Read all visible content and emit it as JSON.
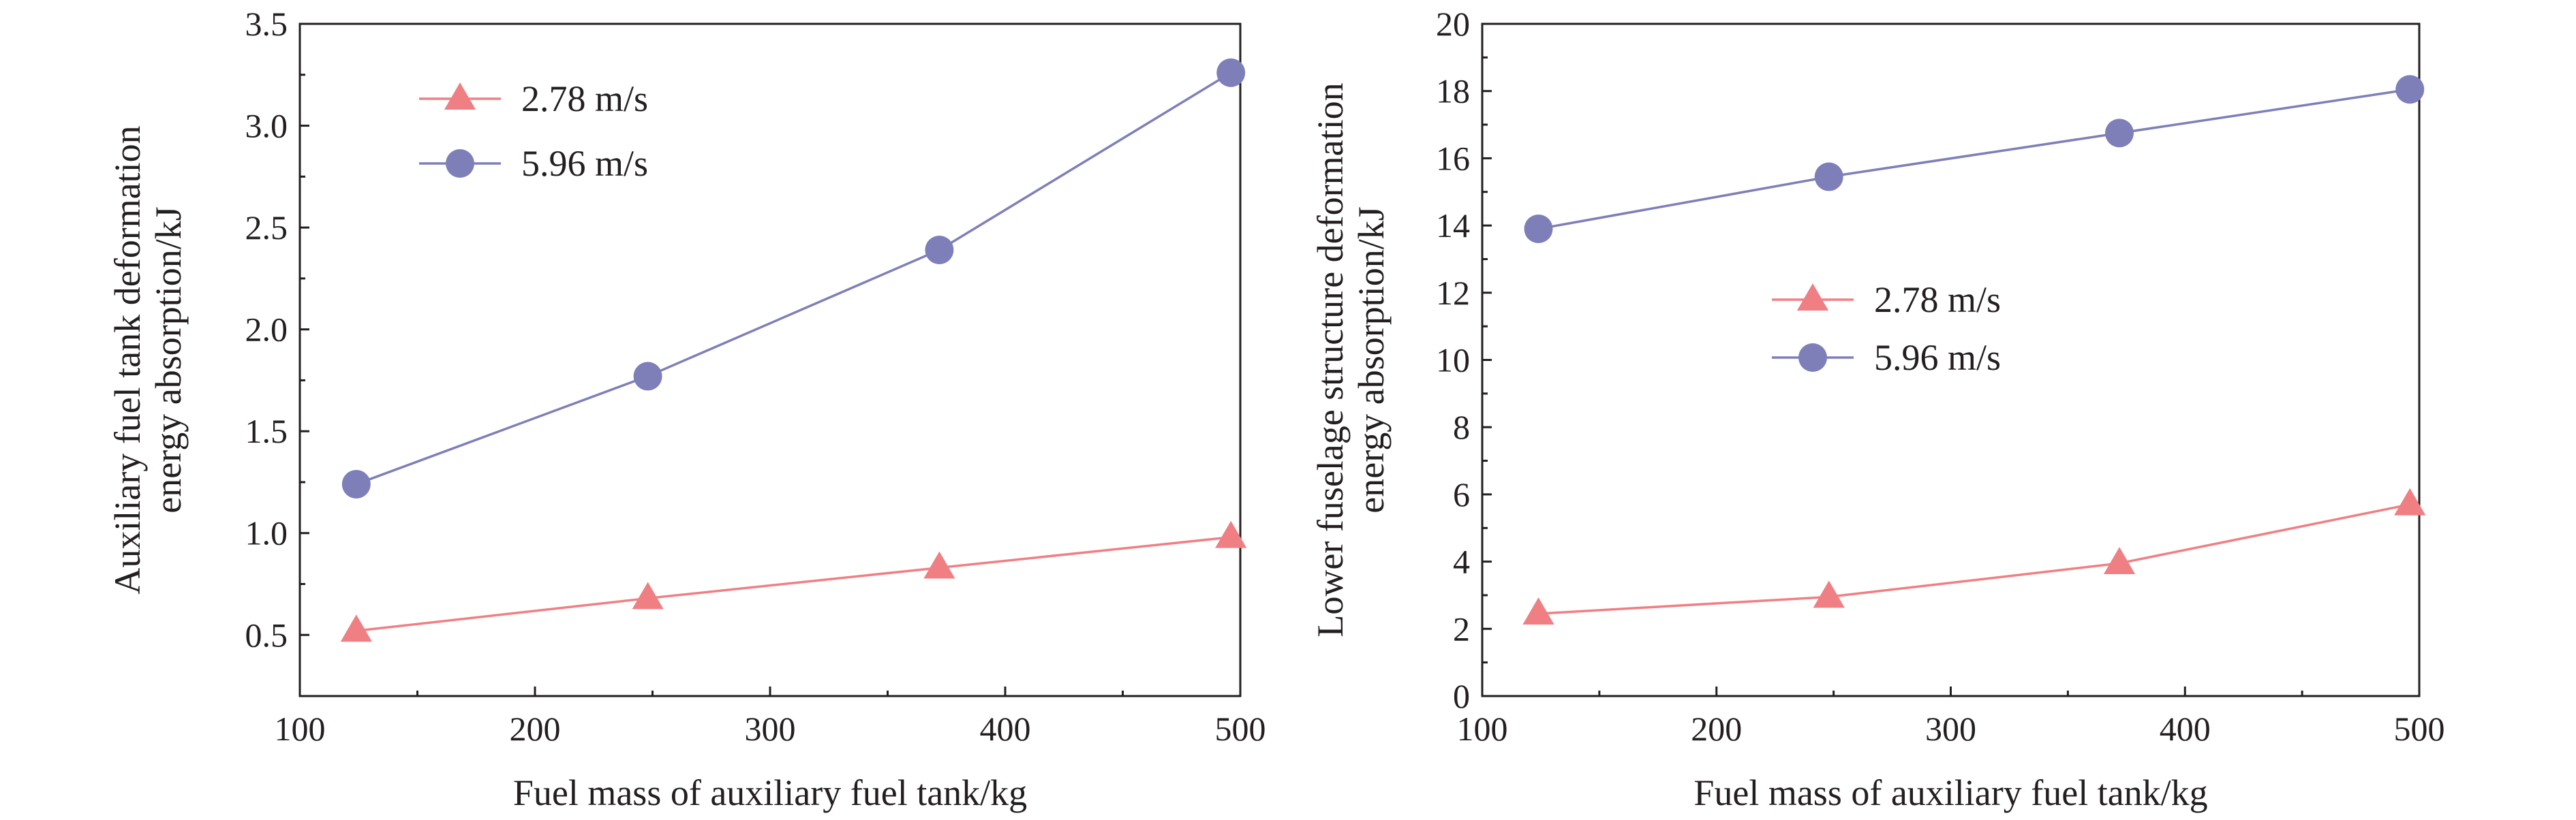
{
  "chart_data": [
    {
      "type": "line",
      "xlabel": "Fuel mass of auxiliary fuel tank/kg",
      "ylabel": [
        "Auxiliary fuel tank deformation",
        "energy absorption/kJ"
      ],
      "xlim": [
        100,
        500
      ],
      "ylim": [
        0.2,
        3.5
      ],
      "xticks": [
        "100",
        "200",
        "300",
        "400",
        "500"
      ],
      "yticks": [
        "0.5",
        "1.0",
        "1.5",
        "2.0",
        "2.5",
        "3.0",
        "3.5"
      ],
      "x": [
        124,
        248,
        372,
        496
      ],
      "grid": false,
      "legend_position": "top-left",
      "series": [
        {
          "name": "2.78 m/s",
          "marker": "triangle",
          "color": "#f07f84",
          "values": [
            0.52,
            0.68,
            0.83,
            0.98
          ]
        },
        {
          "name": "5.96 m/s",
          "marker": "circle",
          "color": "#7e7fb9",
          "values": [
            1.24,
            1.77,
            2.39,
            3.26
          ]
        }
      ]
    },
    {
      "type": "line",
      "xlabel": "Fuel mass of auxiliary fuel tank/kg",
      "ylabel": [
        "Lower fuselage structure deformation",
        "energy absorption/kJ"
      ],
      "xlim": [
        100,
        500
      ],
      "ylim": [
        0,
        20
      ],
      "xticks": [
        "100",
        "200",
        "300",
        "400",
        "500"
      ],
      "yticks": [
        "0",
        "2",
        "4",
        "6",
        "8",
        "10",
        "12",
        "14",
        "16",
        "18",
        "20"
      ],
      "x": [
        124,
        248,
        372,
        496
      ],
      "grid": false,
      "legend_position": "center-left",
      "series": [
        {
          "name": "2.78 m/s",
          "marker": "triangle",
          "color": "#f07f84",
          "values": [
            2.45,
            2.95,
            3.95,
            5.7
          ]
        },
        {
          "name": "5.96 m/s",
          "marker": "circle",
          "color": "#7e7fb9",
          "values": [
            13.9,
            15.45,
            16.75,
            18.05
          ]
        }
      ]
    }
  ]
}
